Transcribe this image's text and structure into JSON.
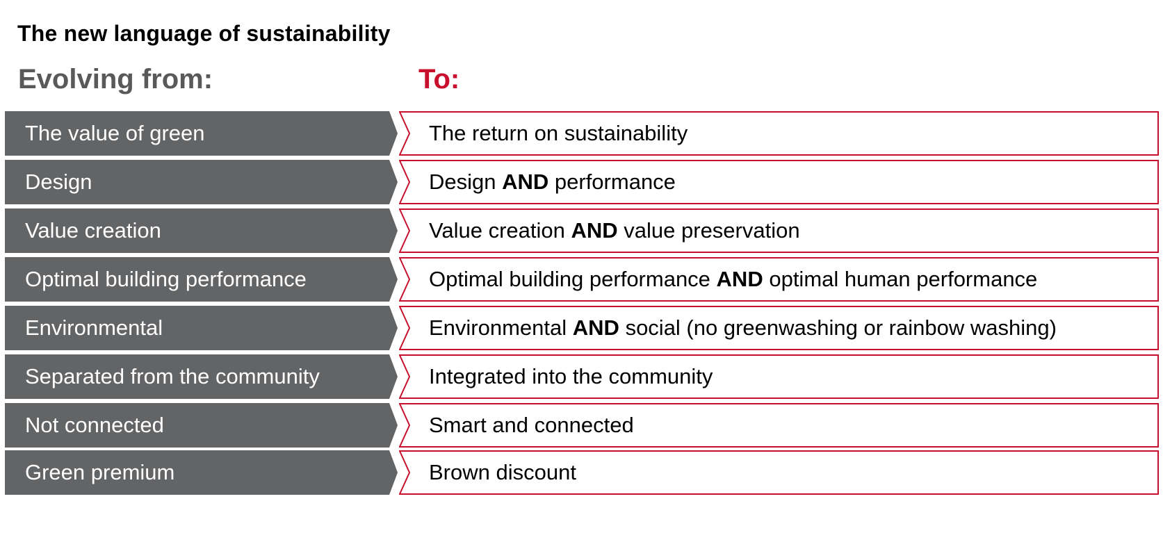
{
  "title": "The new language of sustainability",
  "columns": {
    "from": "Evolving from:",
    "to": "To:"
  },
  "colors": {
    "from_fill": "#636466",
    "accent_red": "#c8102e",
    "heading_gray": "#58595b"
  },
  "rows": [
    {
      "from": "The value of green",
      "to_pre": "The return on sustainability",
      "to_bold": "",
      "to_post": ""
    },
    {
      "from": "Design",
      "to_pre": "Design ",
      "to_bold": "AND",
      "to_post": " performance"
    },
    {
      "from": "Value creation",
      "to_pre": "Value creation ",
      "to_bold": "AND",
      "to_post": " value preservation"
    },
    {
      "from": "Optimal building performance",
      "to_pre": "Optimal building performance ",
      "to_bold": "AND",
      "to_post": " optimal human performance"
    },
    {
      "from": "Environmental",
      "to_pre": "Environmental ",
      "to_bold": "AND",
      "to_post": " social (no greenwashing or rainbow washing)"
    },
    {
      "from": "Separated from the community",
      "to_pre": "Integrated into the community",
      "to_bold": "",
      "to_post": ""
    },
    {
      "from": "Not connected",
      "to_pre": "Smart and connected",
      "to_bold": "",
      "to_post": ""
    },
    {
      "from": "Green premium",
      "to_pre": "Brown discount",
      "to_bold": "",
      "to_post": ""
    }
  ]
}
